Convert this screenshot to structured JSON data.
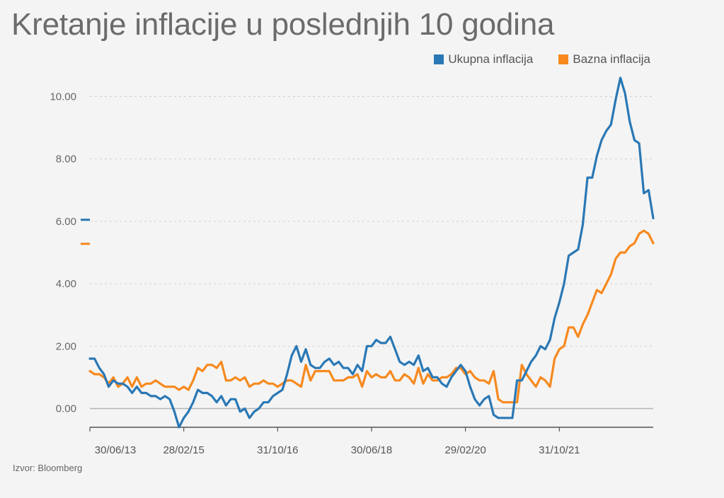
{
  "title": "Kretanje inflacije u poslednjih 10 godina",
  "source": "Izvor: Bloomberg",
  "colors": {
    "ukupna": "#2a78b5",
    "bazna": "#f7891e",
    "grid": "#cfcfcf",
    "baseline": "#b5b5b5",
    "axis": "#555555"
  },
  "legend": [
    {
      "label": "Ukupna inflacija",
      "color": "#2a78b5"
    },
    {
      "label": "Bazna inflacija",
      "color": "#f7891e"
    }
  ],
  "chart_data": {
    "type": "line",
    "title": "Kretanje inflacije u poslednjih 10 godina",
    "xlabel": "",
    "ylabel": "",
    "x_start": "2013-06",
    "x_end": "2023-06",
    "ylim": [
      -0.6,
      10.6
    ],
    "yticks": [
      0,
      2,
      4,
      6,
      8,
      10
    ],
    "ytick_labels": [
      "0.00",
      "2.00",
      "4.00",
      "6.00",
      "8.00",
      "10.00"
    ],
    "xtick_labels": [
      "30/06/13",
      "28/02/15",
      "31/10/16",
      "30/06/18",
      "29/02/20",
      "31/10/21"
    ],
    "grid": true,
    "legend_position": "top-right",
    "markers_left": [
      6.05,
      5.28
    ],
    "series": [
      {
        "name": "Ukupna inflacija",
        "color": "#2a78b5",
        "values": [
          1.6,
          1.6,
          1.3,
          1.1,
          0.7,
          0.9,
          0.8,
          0.8,
          0.7,
          0.5,
          0.7,
          0.5,
          0.5,
          0.4,
          0.4,
          0.3,
          0.4,
          0.3,
          -0.1,
          -0.6,
          -0.3,
          -0.1,
          0.2,
          0.6,
          0.5,
          0.5,
          0.4,
          0.2,
          0.4,
          0.1,
          0.3,
          0.3,
          -0.1,
          0.0,
          -0.3,
          -0.1,
          0.0,
          0.2,
          0.2,
          0.4,
          0.5,
          0.6,
          1.1,
          1.7,
          2.0,
          1.5,
          1.9,
          1.4,
          1.3,
          1.3,
          1.5,
          1.6,
          1.4,
          1.5,
          1.3,
          1.3,
          1.1,
          1.4,
          1.2,
          2.0,
          2.0,
          2.2,
          2.1,
          2.1,
          2.3,
          1.9,
          1.5,
          1.4,
          1.5,
          1.4,
          1.7,
          1.2,
          1.3,
          1.0,
          1.0,
          0.8,
          0.7,
          1.0,
          1.2,
          1.4,
          1.2,
          0.7,
          0.3,
          0.1,
          0.3,
          0.4,
          -0.2,
          -0.3,
          -0.3,
          -0.3,
          -0.3,
          0.9,
          0.9,
          1.2,
          1.5,
          1.7,
          2.0,
          1.9,
          2.2,
          2.9,
          3.4,
          4.0,
          4.9,
          5.0,
          5.1,
          5.9,
          7.4,
          7.4,
          8.1,
          8.6,
          8.9,
          9.1,
          9.9,
          10.6,
          10.1,
          9.2,
          8.6,
          8.5,
          6.9,
          7.0,
          6.1
        ]
      },
      {
        "name": "Bazna inflacija",
        "color": "#f7891e",
        "values": [
          1.2,
          1.1,
          1.1,
          1.0,
          0.8,
          1.0,
          0.7,
          0.8,
          1.0,
          0.7,
          1.0,
          0.7,
          0.8,
          0.8,
          0.9,
          0.8,
          0.7,
          0.7,
          0.7,
          0.6,
          0.7,
          0.6,
          0.9,
          1.3,
          1.2,
          1.4,
          1.4,
          1.3,
          1.5,
          0.9,
          0.9,
          1.0,
          0.9,
          1.0,
          0.7,
          0.8,
          0.8,
          0.9,
          0.8,
          0.8,
          0.7,
          0.8,
          0.9,
          0.9,
          0.8,
          0.7,
          1.4,
          0.9,
          1.2,
          1.2,
          1.2,
          1.2,
          0.9,
          0.9,
          0.9,
          1.0,
          1.0,
          1.1,
          0.7,
          1.2,
          1.0,
          1.1,
          1.0,
          1.0,
          1.2,
          0.9,
          0.9,
          1.1,
          1.0,
          0.8,
          1.3,
          0.8,
          1.1,
          0.9,
          0.9,
          1.0,
          1.0,
          1.1,
          1.3,
          1.3,
          1.1,
          1.2,
          1.0,
          0.9,
          0.9,
          0.8,
          1.2,
          0.3,
          0.2,
          0.2,
          0.2,
          0.2,
          1.4,
          1.1,
          0.9,
          0.7,
          1.0,
          0.9,
          0.7,
          1.6,
          1.9,
          2.0,
          2.6,
          2.6,
          2.3,
          2.7,
          3.0,
          3.4,
          3.8,
          3.7,
          4.0,
          4.3,
          4.8,
          5.0,
          5.0,
          5.2,
          5.3,
          5.6,
          5.7,
          5.6,
          5.3
        ]
      }
    ]
  }
}
